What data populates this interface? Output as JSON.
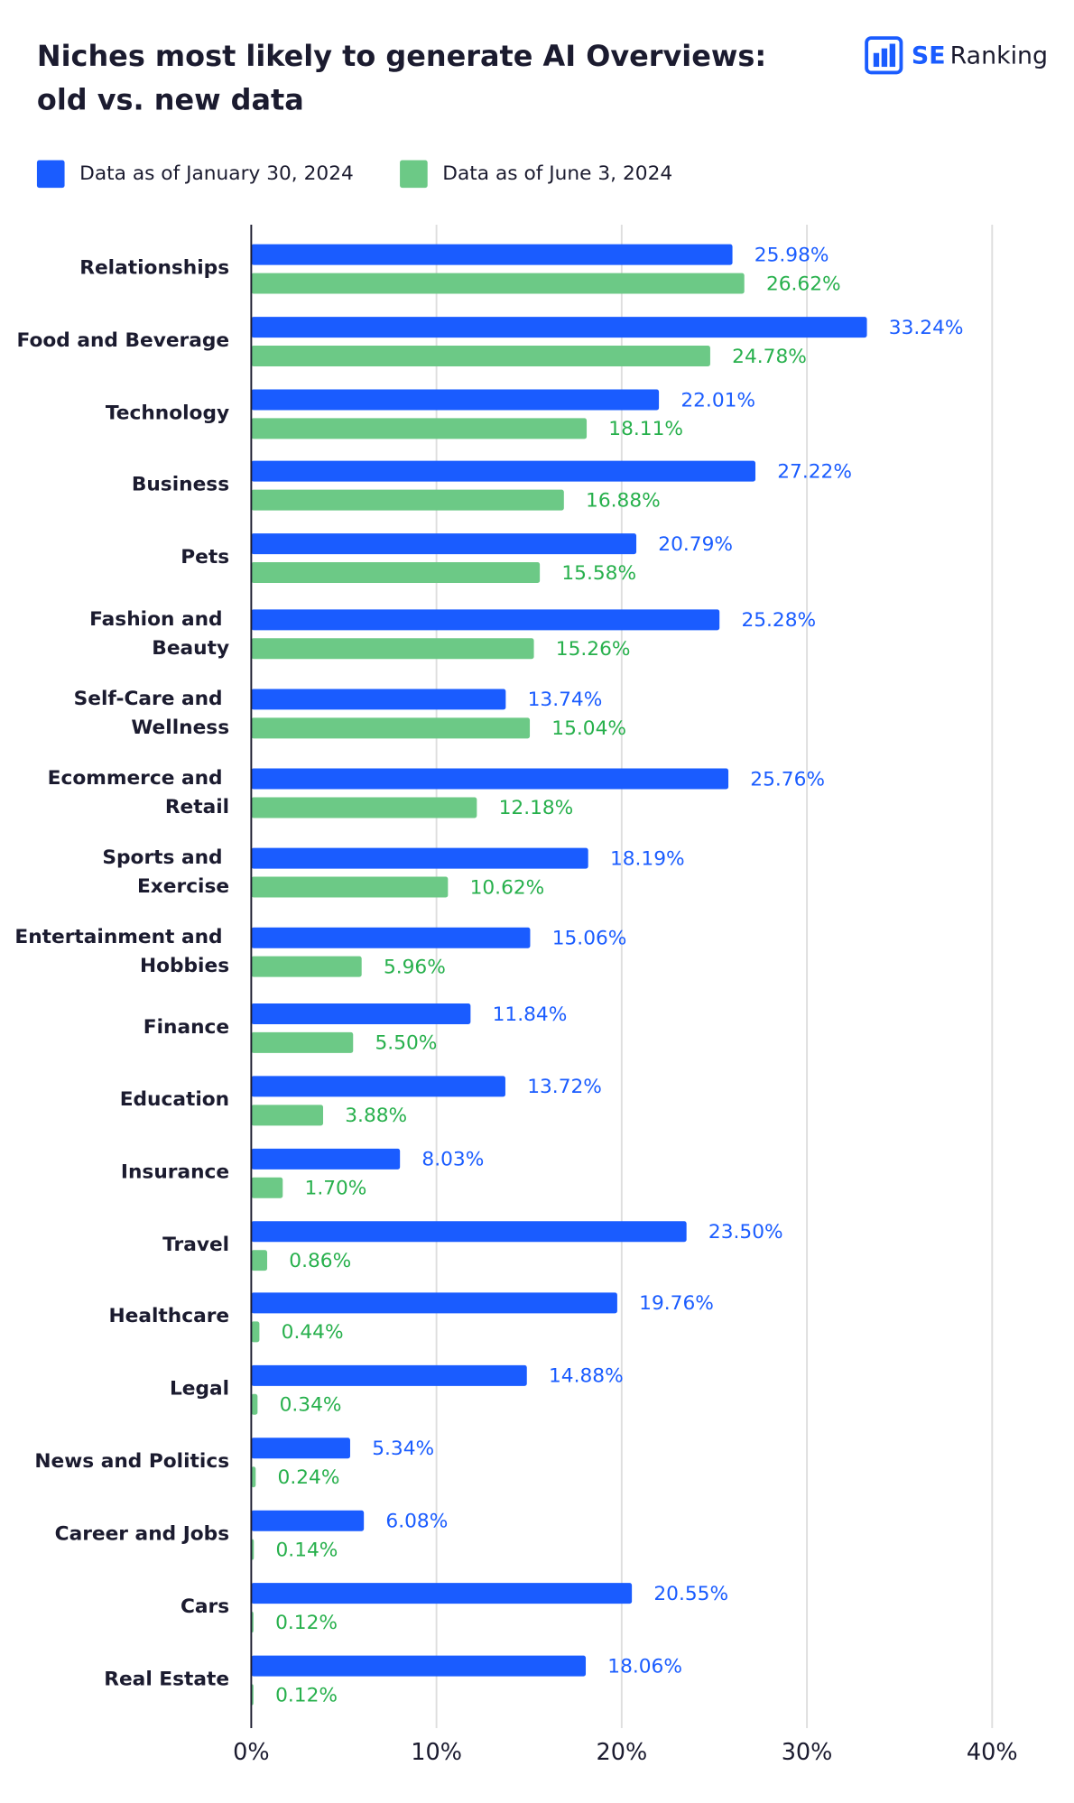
{
  "chart_data": {
    "type": "bar",
    "orientation": "horizontal",
    "title": "Niches most likely to generate AI Overviews: old vs. new data",
    "logo": [
      "SE",
      "Ranking"
    ],
    "categories": [
      "Relationships",
      "Food and Beverage",
      "Technology",
      "Business",
      "Pets",
      "Fashion and Beauty",
      "Self-Care and Wellness",
      "Ecommerce and Retail",
      "Sports and Exercise",
      "Entertainment and Hobbies",
      "Finance",
      "Education",
      "Insurance",
      "Travel",
      "Healthcare",
      "Legal",
      "News and Politics",
      "Career and Jobs",
      "Cars",
      "Real Estate"
    ],
    "series": [
      {
        "name": "Data as of January 30, 2024",
        "color": "#1a5cff",
        "label_color": "#1a5cff",
        "values": [
          25.98,
          33.24,
          22.01,
          27.22,
          20.79,
          25.28,
          13.74,
          25.76,
          18.19,
          15.06,
          11.84,
          13.72,
          8.03,
          23.5,
          19.76,
          14.88,
          5.34,
          6.08,
          20.55,
          18.06
        ],
        "value_labels": [
          "25.98%",
          "33.24%",
          "22.01%",
          "27.22%",
          "20.79%",
          "25.28%",
          "13.74%",
          "25.76%",
          "18.19%",
          "15.06%",
          "11.84%",
          "13.72%",
          "8.03%",
          "23.50%",
          "19.76%",
          "14.88%",
          "5.34%",
          "6.08%",
          "20.55%",
          "18.06%"
        ]
      },
      {
        "name": "Data as of June 3, 2024",
        "color": "#6cc986",
        "label_color": "#27b04c",
        "values": [
          26.62,
          24.78,
          18.11,
          16.88,
          15.58,
          15.26,
          15.04,
          12.18,
          10.62,
          5.96,
          5.5,
          3.88,
          1.7,
          0.86,
          0.44,
          0.34,
          0.24,
          0.14,
          0.12,
          0.12
        ],
        "value_labels": [
          "26.62%",
          "24.78%",
          "18.11%",
          "16.88%",
          "15.58%",
          "15.26%",
          "15.04%",
          "12.18%",
          "10.62%",
          "5.96%",
          "5.50%",
          "3.88%",
          "1.70%",
          "0.86%",
          "0.44%",
          "0.34%",
          "0.24%",
          "0.14%",
          "0.12%",
          "0.12%"
        ]
      }
    ],
    "xlim": [
      0,
      40
    ],
    "xticks": [
      {
        "value": 0,
        "label": "0%"
      },
      {
        "value": 10,
        "label": "10%"
      },
      {
        "value": 20,
        "label": "20%"
      },
      {
        "value": 30,
        "label": "30%"
      },
      {
        "value": 40,
        "label": "40%"
      }
    ],
    "grid": true,
    "legend": "top-left"
  }
}
